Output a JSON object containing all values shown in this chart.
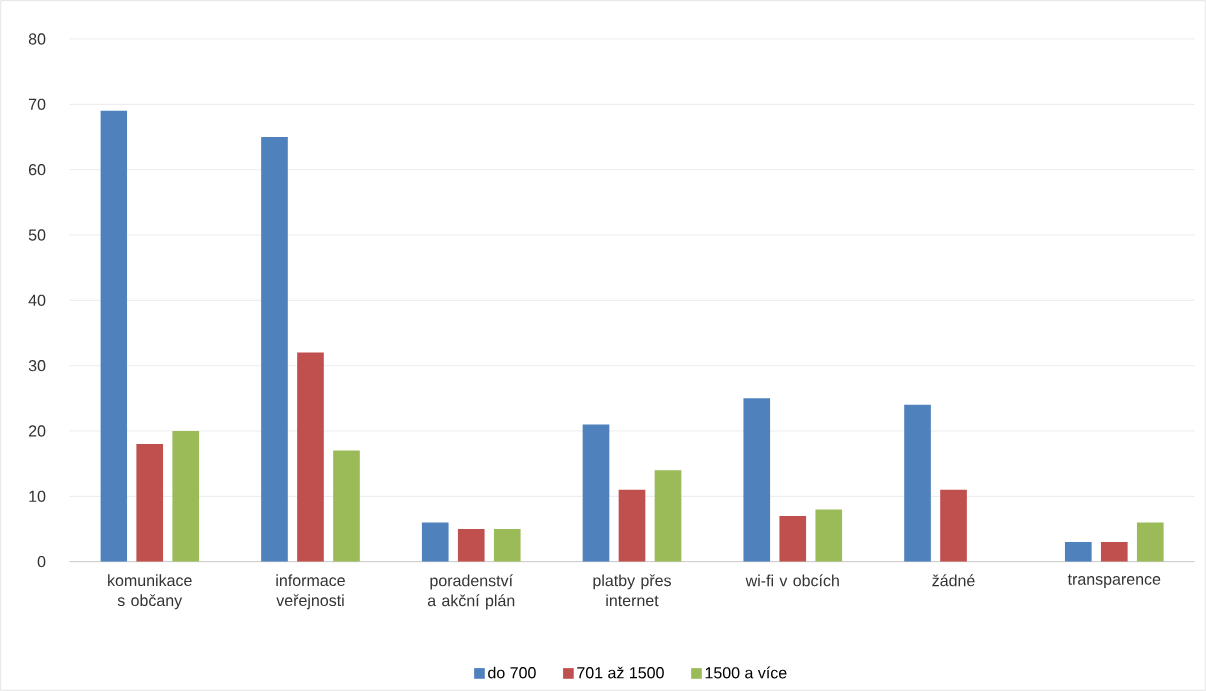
{
  "chart_data": {
    "type": "bar",
    "categories": [
      "komunikace s občany",
      "informace veřejnosti",
      "poradenství a akční plán",
      "platby přes internet",
      "wi-fi v obcích",
      "žádné",
      "transparence"
    ],
    "series": [
      {
        "name": "do 700",
        "color": "#4f81bd",
        "values": [
          69,
          65,
          6,
          21,
          25,
          24,
          3
        ]
      },
      {
        "name": "701 až 1500",
        "color": "#c0504d",
        "values": [
          18,
          32,
          5,
          11,
          7,
          11,
          3
        ]
      },
      {
        "name": "1500 a více",
        "color": "#9bbb59",
        "values": [
          20,
          17,
          5,
          14,
          8,
          null,
          6
        ]
      }
    ],
    "ylim": [
      0,
      80
    ],
    "yticks": [
      0,
      10,
      20,
      30,
      40,
      50,
      60,
      70,
      80
    ],
    "grid": "y",
    "legend": "bottom"
  }
}
